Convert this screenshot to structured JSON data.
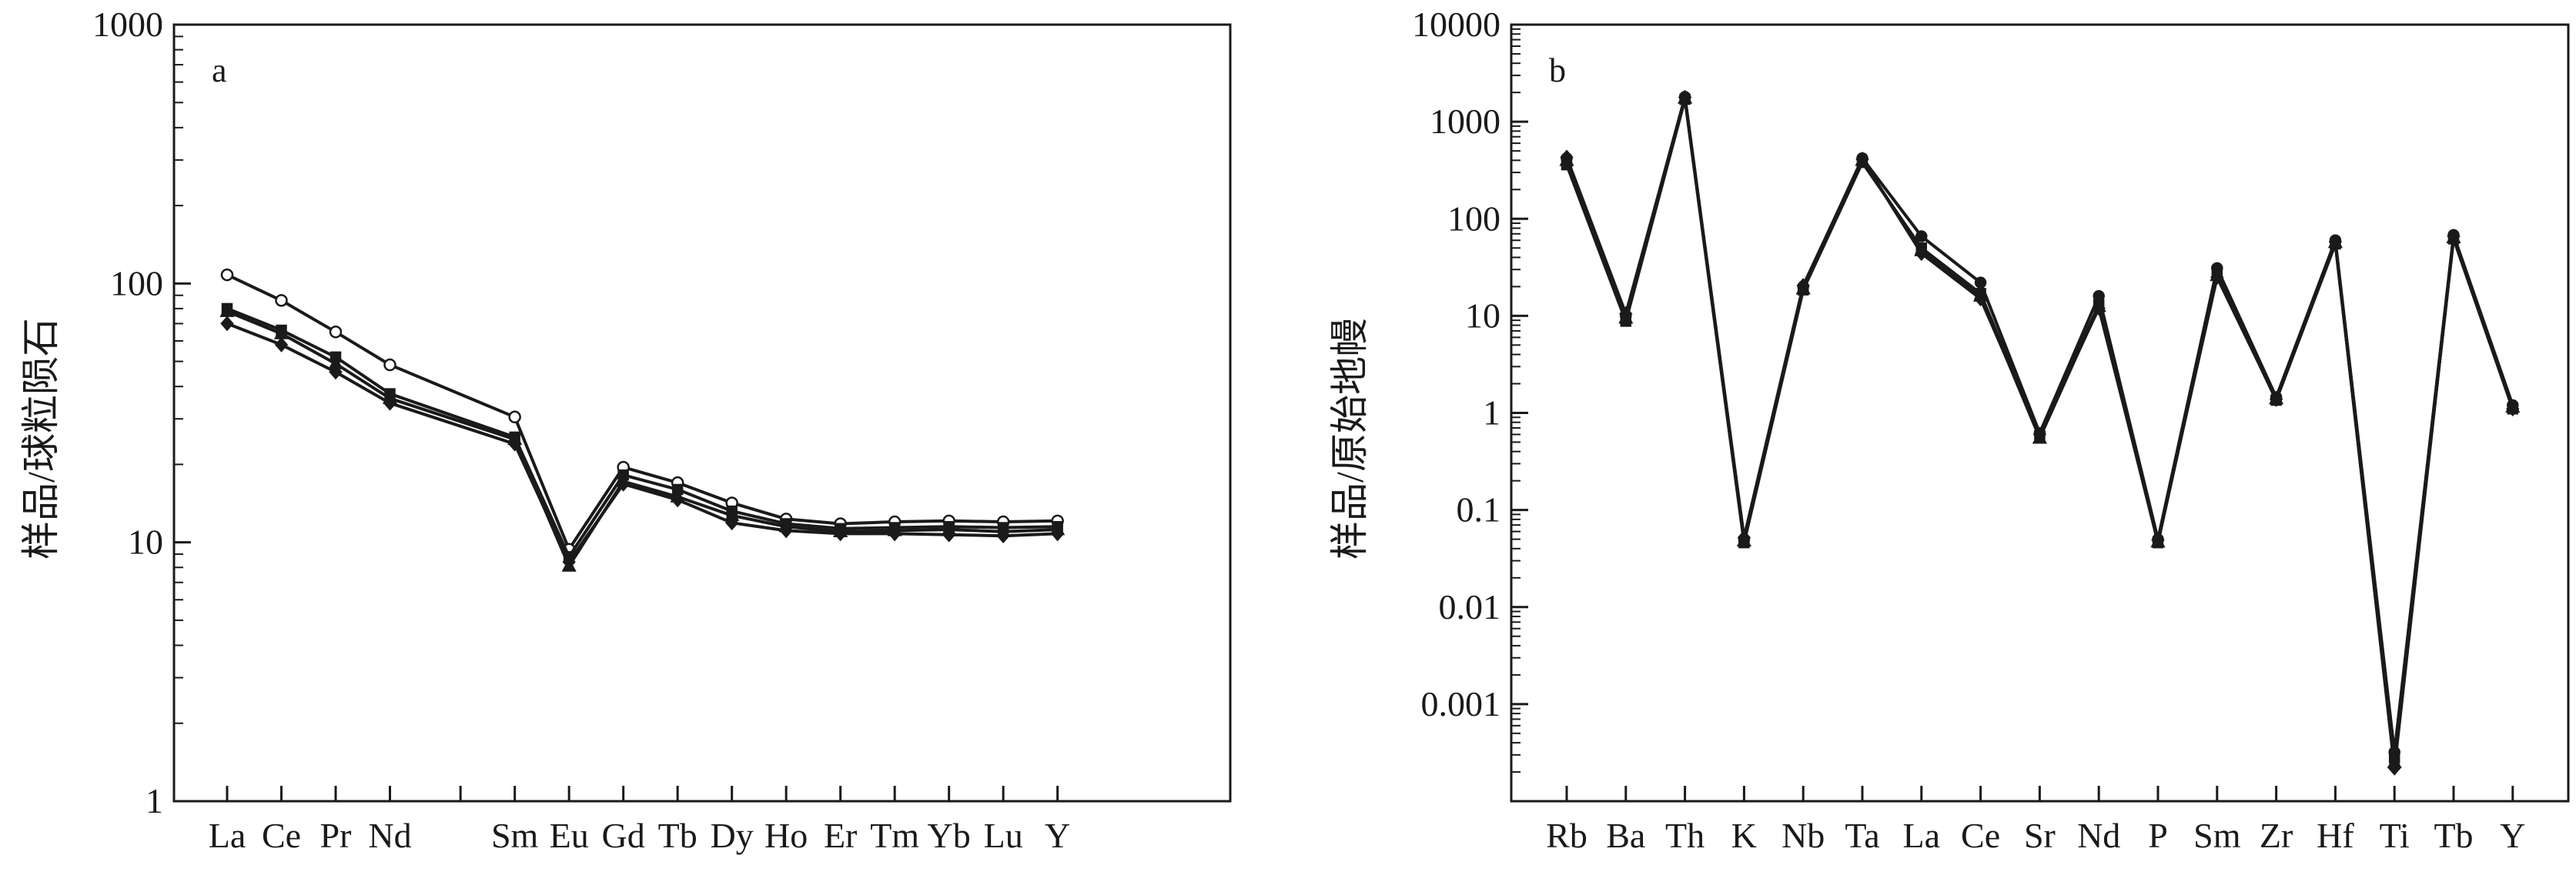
{
  "chart_data": [
    {
      "type": "line",
      "panel_label": "a",
      "ylabel": "样品/球粒陨石",
      "xlabel": "",
      "yscale": "log",
      "ylim": [
        1,
        1000
      ],
      "yticks": [
        1,
        10,
        100,
        1000
      ],
      "ytick_labels": [
        "1",
        "10",
        "100",
        "1000"
      ],
      "grid": false,
      "categories": [
        "La",
        "Ce",
        "Pr",
        "Nd",
        "",
        "Sm",
        "Eu",
        "Gd",
        "Tb",
        "Dy",
        "Ho",
        "Er",
        "Tm",
        "Yb",
        "Lu",
        "Y"
      ],
      "category_positions": [
        0,
        1,
        2,
        3,
        4.3,
        5.3,
        6.3,
        7.3,
        8.3,
        9.3,
        10.3,
        11.3,
        12.3,
        13.3,
        14.3,
        15.3
      ],
      "series": [
        {
          "marker": "circle-open",
          "x": [
            0,
            1,
            2,
            3,
            5.3,
            6.3,
            7.3,
            8.3,
            9.3,
            10.3,
            11.3,
            12.3,
            13.3,
            14.3,
            15.3
          ],
          "values": [
            108,
            86,
            65,
            48.5,
            30.5,
            9.4,
            19.5,
            17,
            14.2,
            12.3,
            11.8,
            12,
            12.1,
            12,
            12.1
          ]
        },
        {
          "marker": "square",
          "x": [
            0,
            1,
            2,
            3,
            5.3,
            6.3,
            7.3,
            8.3,
            9.3,
            10.3,
            11.3,
            12.3,
            13.3,
            14.3,
            15.3
          ],
          "values": [
            80,
            66,
            52,
            37.5,
            25.5,
            8.8,
            18.2,
            16,
            13.2,
            11.8,
            11.3,
            11.4,
            11.5,
            11.4,
            11.5
          ]
        },
        {
          "marker": "triangle",
          "x": [
            0,
            1,
            2,
            3,
            5.3,
            6.3,
            7.3,
            8.3,
            9.3,
            10.3,
            11.3,
            12.3,
            13.3,
            14.3,
            15.3
          ],
          "values": [
            78,
            64,
            49,
            36,
            25,
            8.1,
            17.2,
            15,
            12.7,
            11.5,
            11,
            11.1,
            11.2,
            11,
            11.2
          ]
        },
        {
          "marker": "diamond",
          "x": [
            0,
            1,
            2,
            3,
            5.3,
            6.3,
            7.3,
            8.3,
            9.3,
            10.3,
            11.3,
            12.3,
            13.3,
            14.3,
            15.3
          ],
          "values": [
            70,
            58,
            45.5,
            34.5,
            24,
            8.4,
            16.8,
            14.6,
            11.9,
            11.1,
            10.8,
            10.8,
            10.7,
            10.6,
            10.8
          ]
        }
      ]
    },
    {
      "type": "line",
      "panel_label": "b",
      "ylabel": "样品/原始地幔",
      "xlabel": "",
      "yscale": "log",
      "ylim": [
        0.0001,
        10000
      ],
      "yticks": [
        0.001,
        0.01,
        0.1,
        1,
        10,
        100,
        1000,
        10000
      ],
      "ytick_labels": [
        "0.001",
        "0.01",
        "0.1",
        "1",
        "10",
        "100",
        "1000",
        "10000"
      ],
      "grid": false,
      "categories": [
        "Rb",
        "Ba",
        "Th",
        "K",
        "Nb",
        "Ta",
        "La",
        "Ce",
        "Sr",
        "Nd",
        "P",
        "Sm",
        "Zr",
        "Hf",
        "Ti",
        "Tb",
        "Y"
      ],
      "series": [
        {
          "marker": "circle",
          "values": [
            420,
            10,
            1800,
            0.05,
            20,
            420,
            66,
            22,
            0.62,
            16,
            0.05,
            31,
            1.45,
            60,
            0.00032,
            68,
            1.2
          ]
        },
        {
          "marker": "square",
          "values": [
            360,
            8.8,
            1700,
            0.046,
            18.5,
            380,
            50,
            17,
            0.58,
            13,
            0.046,
            27,
            1.35,
            55,
            0.00028,
            62,
            1.1
          ]
        },
        {
          "marker": "triangle",
          "values": [
            400,
            9.5,
            1750,
            0.048,
            19,
            400,
            47,
            16,
            0.55,
            12.5,
            0.047,
            26,
            1.4,
            57,
            0.00025,
            64,
            1.15
          ]
        },
        {
          "marker": "diamond",
          "values": [
            430,
            10.5,
            1780,
            0.052,
            20.5,
            410,
            44,
            15,
            0.6,
            12,
            0.049,
            25,
            1.38,
            58,
            0.00022,
            66,
            1.1
          ]
        }
      ]
    }
  ]
}
